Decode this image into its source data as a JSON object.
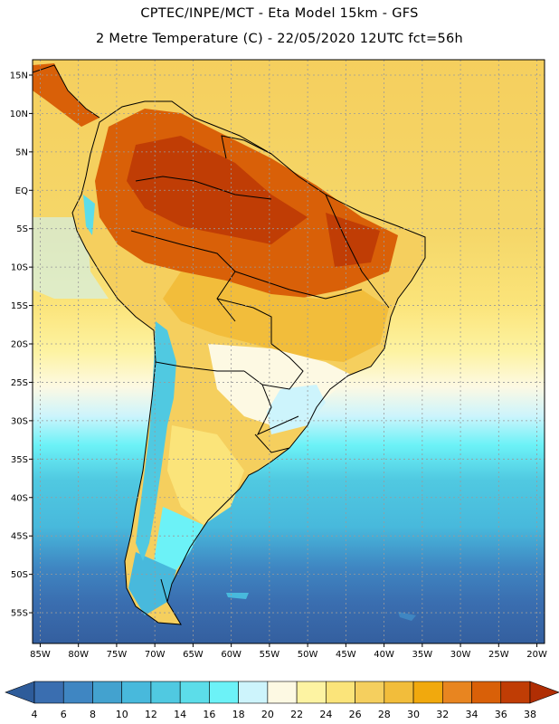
{
  "header": {
    "title_line1": "CPTEC/INPE/MCT -  Eta Model 15km - GFS",
    "title_line2": "2 Metre Temperature (C) - 22/05/2020 12UTC fct=56h"
  },
  "map": {
    "lon_range": [
      -86,
      -19
    ],
    "lat_range": [
      -59,
      17
    ],
    "lat_ticks": [
      {
        "value": 15,
        "label": "15N"
      },
      {
        "value": 10,
        "label": "10N"
      },
      {
        "value": 5,
        "label": "5N"
      },
      {
        "value": 0,
        "label": "EQ"
      },
      {
        "value": -5,
        "label": "5S"
      },
      {
        "value": -10,
        "label": "10S"
      },
      {
        "value": -15,
        "label": "15S"
      },
      {
        "value": -20,
        "label": "20S"
      },
      {
        "value": -25,
        "label": "25S"
      },
      {
        "value": -30,
        "label": "30S"
      },
      {
        "value": -35,
        "label": "35S"
      },
      {
        "value": -40,
        "label": "40S"
      },
      {
        "value": -45,
        "label": "45S"
      },
      {
        "value": -50,
        "label": "50S"
      },
      {
        "value": -55,
        "label": "55S"
      }
    ],
    "lon_ticks": [
      {
        "value": -85,
        "label": "85W"
      },
      {
        "value": -80,
        "label": "80W"
      },
      {
        "value": -75,
        "label": "75W"
      },
      {
        "value": -70,
        "label": "70W"
      },
      {
        "value": -65,
        "label": "65W"
      },
      {
        "value": -60,
        "label": "60W"
      },
      {
        "value": -55,
        "label": "55W"
      },
      {
        "value": -50,
        "label": "50W"
      },
      {
        "value": -45,
        "label": "45W"
      },
      {
        "value": -40,
        "label": "40W"
      },
      {
        "value": -35,
        "label": "35W"
      },
      {
        "value": -30,
        "label": "30W"
      },
      {
        "value": -25,
        "label": "25W"
      },
      {
        "value": -20,
        "label": "20W"
      }
    ]
  },
  "colorbar": {
    "labels": [
      "4",
      "6",
      "8",
      "10",
      "12",
      "14",
      "16",
      "18",
      "20",
      "22",
      "24",
      "26",
      "28",
      "30",
      "32",
      "34",
      "36",
      "38"
    ],
    "colors": [
      "#3a6eb0",
      "#3f86c2",
      "#43a2cf",
      "#48b9dc",
      "#50c9e1",
      "#5cdde9",
      "#6cf2f7",
      "#cdf4fc",
      "#fdf9e3",
      "#fdf3a2",
      "#fbe47a",
      "#f5cf5e",
      "#f2bd3b",
      "#f1a90d",
      "#e88520",
      "#d96008",
      "#c03d05"
    ],
    "under_color": "#2e5c9a",
    "over_color": "#b02e04"
  }
}
